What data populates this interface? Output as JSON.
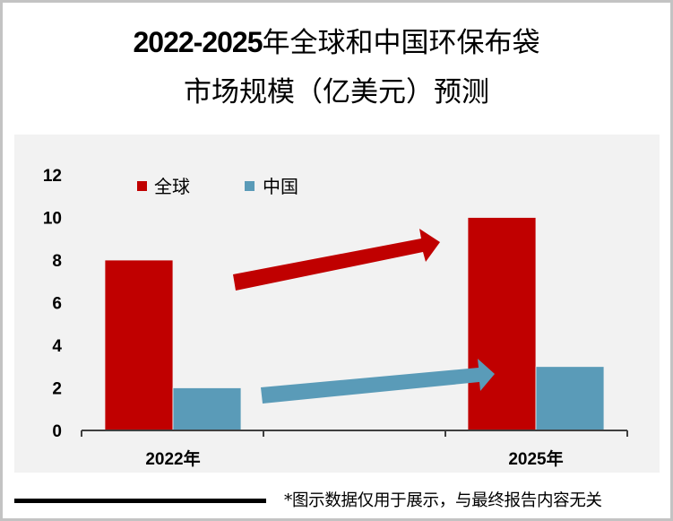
{
  "title": {
    "line1_num": "2022-2025",
    "line1_text": "年全球和中国环保布袋",
    "line2": "市场规模（亿美元）预测"
  },
  "legend": [
    {
      "label": "全球",
      "color": "#c00000"
    },
    {
      "label": "中国",
      "color": "#5a9bb8"
    }
  ],
  "note": "*图示数据仅用于展示，与最终报告内容无关",
  "chart_data": {
    "type": "bar",
    "title": "2022-2025年全球和中国环保布袋市场规模（亿美元）预测",
    "categories": [
      "2022年",
      "2025年"
    ],
    "series": [
      {
        "name": "全球",
        "values": [
          8,
          10
        ],
        "color": "#c00000"
      },
      {
        "name": "中国",
        "values": [
          2,
          3
        ],
        "color": "#5a9bb8"
      }
    ],
    "xlabel": "",
    "ylabel": "",
    "ylim": [
      0,
      12
    ],
    "yticks": [
      "0",
      "2",
      "4",
      "6",
      "8",
      "10",
      "12"
    ],
    "grid": false,
    "legend_position": "top-left inside",
    "annotations": [
      {
        "type": "arrow",
        "color": "#c00000",
        "from": "2022年 全球",
        "to": "2025年 全球",
        "meaning": "growth"
      },
      {
        "type": "arrow",
        "color": "#5a9bb8",
        "from": "2022年 中国",
        "to": "2025年 中国",
        "meaning": "growth"
      }
    ]
  }
}
